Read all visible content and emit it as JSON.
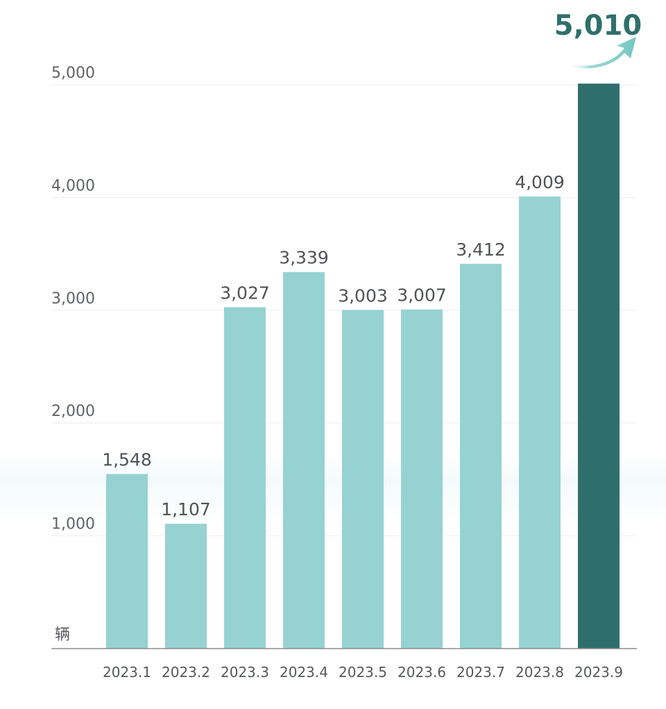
{
  "chart_data": {
    "type": "bar",
    "categories": [
      "2023.1",
      "2023.2",
      "2023.3",
      "2023.4",
      "2023.5",
      "2023.6",
      "2023.7",
      "2023.8",
      "2023.9"
    ],
    "values": [
      1548,
      1107,
      3027,
      3339,
      3003,
      3007,
      3412,
      4009,
      5010
    ],
    "value_labels": [
      "1,548",
      "1,107",
      "3,027",
      "3,339",
      "3,003",
      "3,007",
      "3,412",
      "4,009",
      "5,010"
    ],
    "y_ticks": [
      1000,
      2000,
      3000,
      4000,
      5000
    ],
    "y_tick_labels": [
      "1,000",
      "2,000",
      "3,000",
      "4,000",
      "5,000"
    ],
    "ylim": [
      0,
      5000
    ],
    "unit_label": "辆",
    "highlight_label": "5,010",
    "grid": true,
    "colors": {
      "bar": "#96d2d2",
      "highlight_bar": "#2f6f6b",
      "grid": "#eeeeee",
      "axis": "#8a8a8a",
      "arrow": "#7fcbc6"
    }
  }
}
